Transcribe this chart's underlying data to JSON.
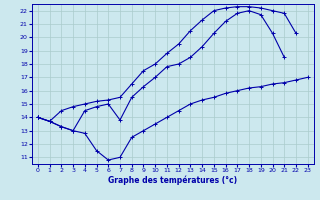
{
  "xlabel": "Graphe des températures (°c)",
  "background_color": "#cce8ee",
  "grid_color": "#aacccc",
  "line_color": "#0000aa",
  "xlim": [
    -0.5,
    23.5
  ],
  "ylim": [
    10.5,
    22.5
  ],
  "xticks": [
    0,
    1,
    2,
    3,
    4,
    5,
    6,
    7,
    8,
    9,
    10,
    11,
    12,
    13,
    14,
    15,
    16,
    17,
    18,
    19,
    20,
    21,
    22,
    23
  ],
  "yticks": [
    11,
    12,
    13,
    14,
    15,
    16,
    17,
    18,
    19,
    20,
    21,
    22
  ],
  "series": [
    {
      "x": [
        0,
        1,
        2,
        3,
        4,
        5,
        6,
        7,
        8,
        9,
        10,
        11,
        12,
        13,
        14,
        15,
        16,
        17,
        18,
        19,
        20,
        21,
        22,
        23
      ],
      "y": [
        14.0,
        13.7,
        13.3,
        13.0,
        12.8,
        11.5,
        10.8,
        11.0,
        12.5,
        13.0,
        13.5,
        14.0,
        14.5,
        15.0,
        15.3,
        15.5,
        15.8,
        16.0,
        16.2,
        16.3,
        16.5,
        16.6,
        16.8,
        17.0
      ]
    },
    {
      "x": [
        0,
        1,
        2,
        3,
        4,
        5,
        6,
        7,
        8,
        9,
        10,
        11,
        12,
        13,
        14,
        15,
        16,
        17,
        18,
        19,
        20,
        21,
        22,
        23
      ],
      "y": [
        14.0,
        13.7,
        13.3,
        13.0,
        14.5,
        14.8,
        15.0,
        13.8,
        15.5,
        16.3,
        17.0,
        17.8,
        18.0,
        18.5,
        19.3,
        20.3,
        21.2,
        21.8,
        22.0,
        21.7,
        20.3,
        18.5,
        null,
        null
      ]
    },
    {
      "x": [
        0,
        1,
        2,
        3,
        4,
        5,
        6,
        7,
        8,
        9,
        10,
        11,
        12,
        13,
        14,
        15,
        16,
        17,
        18,
        19,
        20,
        21,
        22,
        23
      ],
      "y": [
        14.0,
        13.7,
        14.5,
        14.8,
        15.0,
        15.2,
        15.3,
        15.5,
        16.5,
        17.5,
        18.0,
        18.8,
        19.5,
        20.5,
        21.3,
        22.0,
        22.2,
        22.3,
        22.3,
        22.2,
        22.0,
        21.8,
        20.3,
        null
      ]
    }
  ]
}
